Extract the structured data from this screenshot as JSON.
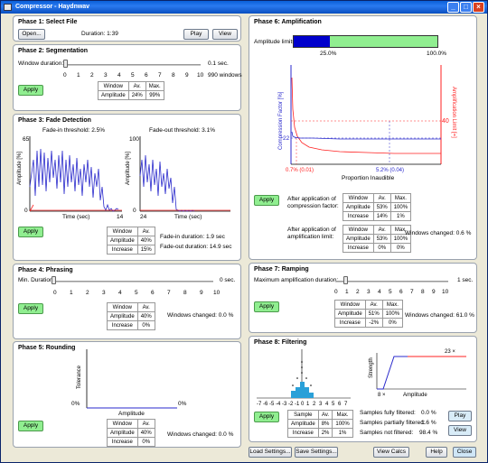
{
  "window": {
    "title": "Compressor - Haydnwav",
    "min": "_",
    "max": "□",
    "close": "×"
  },
  "phase1": {
    "title": "Phase 1: Select File",
    "open": "Open...",
    "duration": "Duration:  1:39",
    "play": "Play",
    "view": "View"
  },
  "phase2": {
    "title": "Phase 2: Segmentation",
    "window_label": "Window duration:",
    "value": "0.1  sec.",
    "windows": "990 windows",
    "ticks": [
      "0",
      "1",
      "2",
      "3",
      "4",
      "5",
      "6",
      "7",
      "8",
      "9",
      "10"
    ],
    "apply": "Apply",
    "table": {
      "headers": [
        "Window",
        "Av.",
        "Max."
      ],
      "rows": [
        [
          "Amplitude",
          "24%",
          "99%"
        ]
      ]
    }
  },
  "phase3": {
    "title": "Phase 3: Fade Detection",
    "fadein_threshold": "Fade-in threshold: 2.5%",
    "fadeout_threshold": "Fade-out threshold: 3.1%",
    "left_ymax": "65",
    "right_ymax": "100",
    "left_y0": "0",
    "right_y0": "0",
    "ylabel": "Amplitude [%]",
    "xlabel": "Time (sec)",
    "left_xmax": "14",
    "right_xmin": "24",
    "apply": "Apply",
    "table": {
      "headers": [
        "Window",
        "Av."
      ],
      "rows": [
        [
          "Amplitude",
          "40%"
        ],
        [
          "Increase",
          "15%"
        ]
      ]
    },
    "fadein_duration": "Fade-in duration:     1.9 sec",
    "fadeout_duration": "Fade-out duration:  14.9 sec"
  },
  "phase4": {
    "title": "Phase 4: Phrasing",
    "label": "Min. Duration:",
    "value": "0  sec.",
    "ticks": [
      "0",
      "1",
      "2",
      "3",
      "4",
      "5",
      "6",
      "7",
      "8",
      "9",
      "10"
    ],
    "apply": "Apply",
    "table": {
      "headers": [
        "Window",
        "Av."
      ],
      "rows": [
        [
          "Amplitude",
          "40%"
        ],
        [
          "Increase",
          "0%"
        ]
      ]
    },
    "changed": "Windows changed:   0.0 %"
  },
  "phase5": {
    "title": "Phase 5: Rounding",
    "ylabel": "Tolerance",
    "xlabel": "Amplitude",
    "left_pct": "0%",
    "right_pct": "0%",
    "apply": "Apply",
    "table": {
      "headers": [
        "Window",
        "Av."
      ],
      "rows": [
        [
          "Amplitude",
          "40%"
        ],
        [
          "Increase",
          "0%"
        ]
      ]
    },
    "changed": "Windows changed:   0.0 %"
  },
  "phase6": {
    "title": "Phase 6: Amplification",
    "limits_label": "Amplitude limits:",
    "limit_low": "25.0%",
    "limit_high": "100.0%",
    "limit_low_frac": 0.25,
    "yleft": "Compression Factor [%]",
    "yright": "Amplification Limit [=]",
    "val22": "22",
    "val40": "40",
    "mark1": "0.7% (0.01)",
    "mark2": "5.2% (0.04)",
    "xlabel": "Proportion Inaudible",
    "apply": "Apply",
    "after_comp": "After application of compression factor:",
    "after_amp": "After application of amplification limit:",
    "table1": {
      "headers": [
        "Window",
        "Av.",
        "Max."
      ],
      "rows": [
        [
          "Amplitude",
          "53%",
          "100%"
        ],
        [
          "Increase",
          "14%",
          "1%"
        ]
      ]
    },
    "table2": {
      "headers": [
        "Window",
        "Av.",
        "Max."
      ],
      "rows": [
        [
          "Amplitude",
          "53%",
          "100%"
        ],
        [
          "Increase",
          "0%",
          "0%"
        ]
      ]
    },
    "changed": "Windows changed:     0.6 %"
  },
  "phase7": {
    "title": "Phase 7: Ramping",
    "label": "Maximum amplification duration:",
    "value": "1  sec.",
    "ticks": [
      "0",
      "1",
      "2",
      "3",
      "4",
      "5",
      "6",
      "7",
      "8",
      "9",
      "10"
    ],
    "apply": "Apply",
    "table": {
      "headers": [
        "Window",
        "Av.",
        "Max."
      ],
      "rows": [
        [
          "Amplitude",
          "51%",
          "100%"
        ],
        [
          "Increase",
          "-2%",
          "0%"
        ]
      ]
    },
    "changed": "Windows changed:   61.0 %"
  },
  "phase8": {
    "title": "Phase 8: Filtering",
    "hist_ticks": [
      "-7",
      "-6",
      "-5",
      "-4",
      "-3",
      "-2",
      "-1",
      "0",
      "1",
      "2",
      "3",
      "4",
      "5",
      "6",
      "7"
    ],
    "strength": "Strength",
    "amplitude": "Amplitude",
    "s_low": "8 ×",
    "s_high": "23 ×",
    "apply": "Apply",
    "table": {
      "headers": [
        "Sample",
        "Av.",
        "Max."
      ],
      "rows": [
        [
          "Amplitude",
          "8%",
          "100%"
        ],
        [
          "Increase",
          "2%",
          "1%"
        ]
      ]
    },
    "fully": "Samples fully filtered:",
    "fully_v": "0.0 %",
    "partially": "Samples partially filtered:",
    "partially_v": "1.6 %",
    "notf": "Samples not filtered:",
    "notf_v": "98.4 %",
    "play": "Play",
    "view": "View"
  },
  "footer": {
    "load": "Load Settings...",
    "save": "Save Settings...",
    "calcs": "View Calcs",
    "help": "Help",
    "close": "Close"
  },
  "colors": {
    "accent_blue": "#0000cc",
    "accent_red": "#ff2020",
    "green": "#90ee90"
  }
}
